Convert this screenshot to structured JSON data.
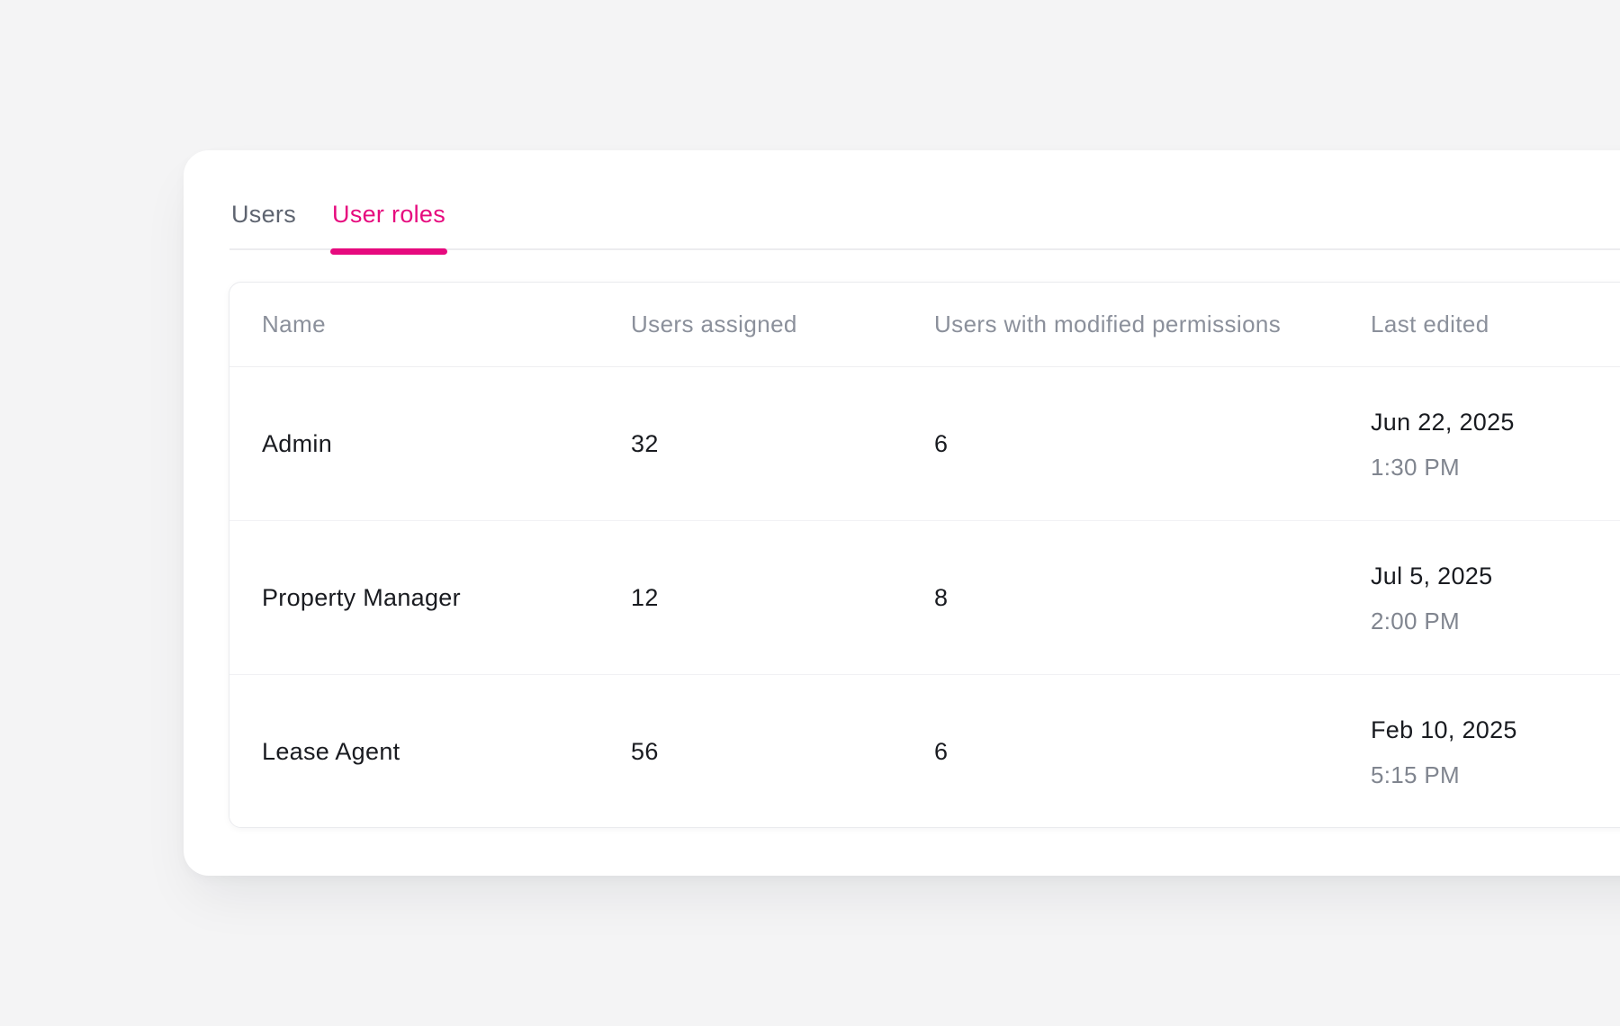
{
  "tabs": [
    {
      "label": "Users",
      "active": false
    },
    {
      "label": "User roles",
      "active": true
    }
  ],
  "table": {
    "columns": [
      "Name",
      "Users assigned",
      "Users with modified permissions",
      "Last edited"
    ],
    "rows": [
      {
        "name": "Admin",
        "users_assigned": "32",
        "modified_permissions": "6",
        "last_edited_date": "Jun 22, 2025",
        "last_edited_time": "1:30 PM"
      },
      {
        "name": "Property Manager",
        "users_assigned": "12",
        "modified_permissions": "8",
        "last_edited_date": "Jul 5, 2025",
        "last_edited_time": "2:00 PM"
      },
      {
        "name": "Lease Agent",
        "users_assigned": "56",
        "modified_permissions": "6",
        "last_edited_date": "Feb 10, 2025",
        "last_edited_time": "5:15 PM"
      }
    ]
  },
  "colors": {
    "accent": "#E60A7E",
    "background": "#F4F4F5",
    "card": "#FFFFFF",
    "text_dark": "#191B20",
    "text_gray": "#80858F",
    "header_gray": "#8B909B",
    "inactive_tab": "#5E6470"
  }
}
